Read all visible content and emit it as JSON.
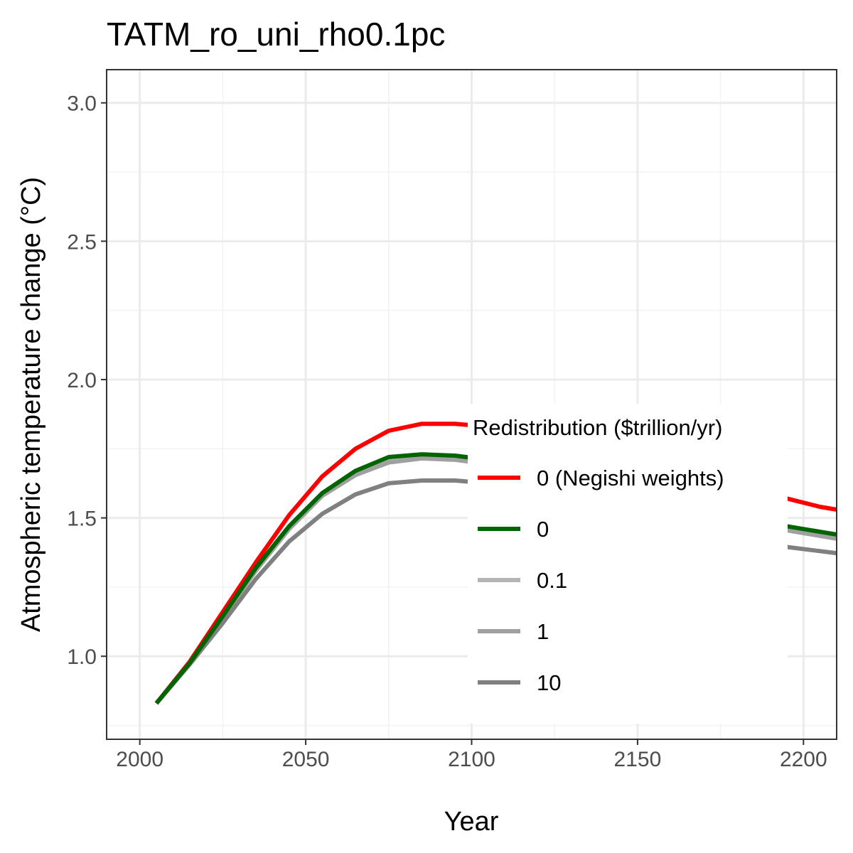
{
  "chart_data": {
    "type": "line",
    "title": "TATM_ro_uni_rho0.1pc",
    "xlabel": "Year",
    "ylabel": "Atmospheric temperature change (°C)",
    "xlim": [
      1990,
      2210
    ],
    "ylim": [
      0.7,
      3.12
    ],
    "x_ticks": [
      2000,
      2050,
      2100,
      2150,
      2200
    ],
    "x_tick_labels": [
      "2000",
      "2050",
      "2100",
      "2150",
      "2200"
    ],
    "y_ticks": [
      1.0,
      1.5,
      2.0,
      2.5,
      3.0
    ],
    "y_tick_labels": [
      "1.0",
      "1.5",
      "2.0",
      "2.5",
      "3.0"
    ],
    "grid": true,
    "legend": {
      "title": "Redistribution ($trillion/yr)",
      "placement": "inside-center-right",
      "entries": [
        "0 (Negishi weights)",
        "0",
        "0.1",
        "1",
        "10"
      ]
    },
    "series": [
      {
        "name": "0 (Negishi weights)",
        "color": "#ff0000",
        "x": [
          2005,
          2015,
          2025,
          2035,
          2045,
          2055,
          2065,
          2075,
          2085,
          2095,
          2105,
          2115,
          2125,
          2135,
          2145,
          2155,
          2165,
          2175,
          2185,
          2195,
          2205,
          2215
        ],
        "y": [
          0.83,
          0.98,
          1.16,
          1.34,
          1.51,
          1.65,
          1.75,
          1.815,
          1.84,
          1.84,
          1.83,
          1.81,
          1.78,
          1.75,
          1.72,
          1.69,
          1.66,
          1.63,
          1.6,
          1.57,
          1.54,
          1.52
        ]
      },
      {
        "name": "0",
        "color": "#006400",
        "x": [
          2005,
          2015,
          2025,
          2035,
          2045,
          2055,
          2065,
          2075,
          2085,
          2095,
          2105,
          2115,
          2125,
          2135,
          2145,
          2155,
          2165,
          2175,
          2185,
          2195,
          2205,
          2215
        ],
        "y": [
          0.83,
          0.975,
          1.145,
          1.32,
          1.47,
          1.59,
          1.67,
          1.72,
          1.73,
          1.725,
          1.71,
          1.69,
          1.665,
          1.635,
          1.605,
          1.575,
          1.545,
          1.515,
          1.49,
          1.47,
          1.45,
          1.43
        ]
      },
      {
        "name": "0.1",
        "color": "#b3b3b3",
        "x": [
          2005,
          2015,
          2025,
          2035,
          2045,
          2055,
          2065,
          2075,
          2085,
          2095,
          2105,
          2115,
          2125,
          2135,
          2145,
          2155,
          2165,
          2175,
          2185,
          2195,
          2205,
          2215
        ],
        "y": [
          0.83,
          0.975,
          1.14,
          1.315,
          1.465,
          1.585,
          1.66,
          1.705,
          1.72,
          1.715,
          1.7,
          1.68,
          1.655,
          1.625,
          1.595,
          1.565,
          1.535,
          1.505,
          1.48,
          1.46,
          1.44,
          1.42
        ]
      },
      {
        "name": "1",
        "color": "#a0a0a0",
        "x": [
          2005,
          2015,
          2025,
          2035,
          2045,
          2055,
          2065,
          2075,
          2085,
          2095,
          2105,
          2115,
          2125,
          2135,
          2145,
          2155,
          2165,
          2175,
          2185,
          2195,
          2205,
          2215
        ],
        "y": [
          0.83,
          0.975,
          1.14,
          1.31,
          1.46,
          1.58,
          1.655,
          1.7,
          1.715,
          1.71,
          1.695,
          1.675,
          1.65,
          1.62,
          1.59,
          1.56,
          1.53,
          1.5,
          1.475,
          1.455,
          1.435,
          1.415
        ]
      },
      {
        "name": "10",
        "color": "#808080",
        "x": [
          2005,
          2015,
          2025,
          2035,
          2045,
          2055,
          2065,
          2075,
          2085,
          2095,
          2105,
          2115,
          2125,
          2135,
          2145,
          2155,
          2165,
          2175,
          2185,
          2195,
          2205,
          2215
        ],
        "y": [
          0.83,
          0.97,
          1.12,
          1.28,
          1.415,
          1.515,
          1.585,
          1.625,
          1.635,
          1.635,
          1.625,
          1.605,
          1.58,
          1.55,
          1.52,
          1.49,
          1.46,
          1.435,
          1.41,
          1.395,
          1.38,
          1.365
        ]
      }
    ]
  }
}
